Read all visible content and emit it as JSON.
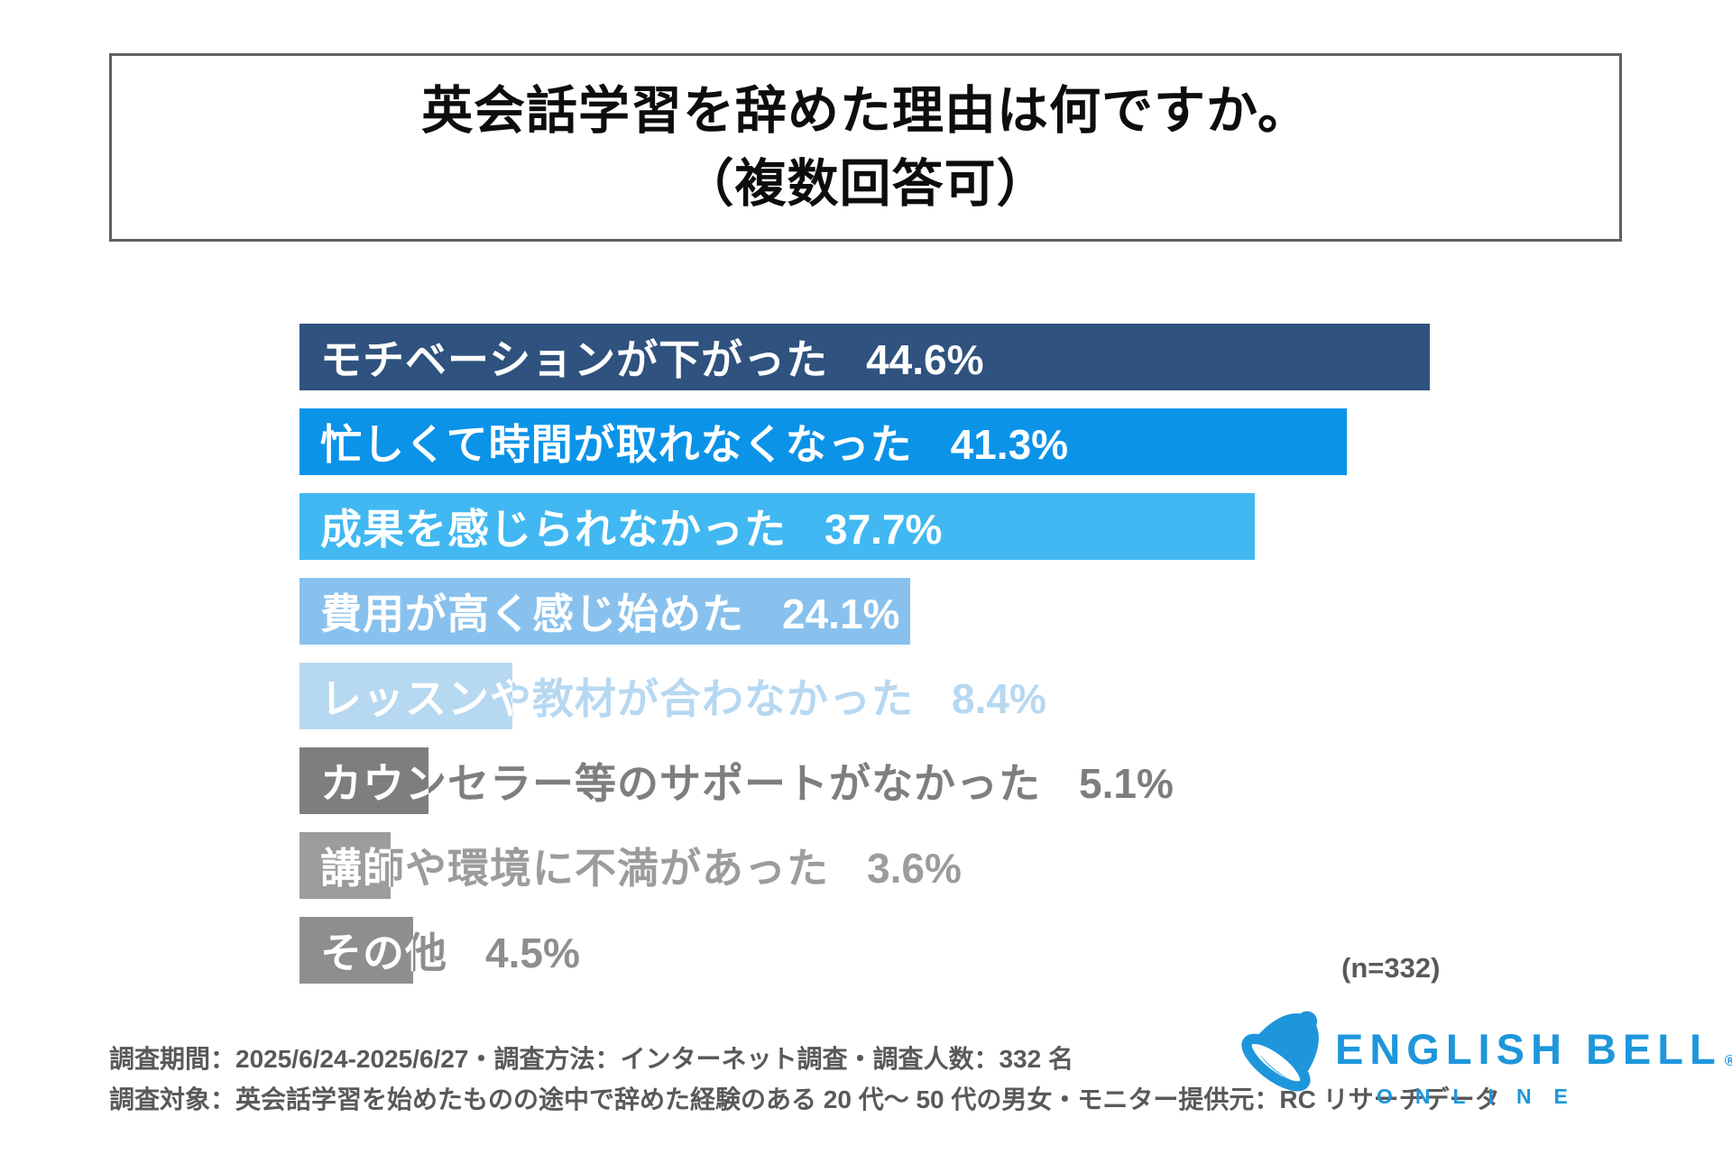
{
  "title": {
    "line1": "英会話学習を辞めた理由は何ですか。",
    "line2": "（複数回答可）"
  },
  "chart_data": {
    "type": "bar",
    "orientation": "horizontal",
    "title": "英会話学習を辞めた理由は何ですか。（複数回答可）",
    "unit": "%",
    "categories": [
      "モチベーションが下がった",
      "忙しくて時間が取れなくなった",
      "成果を感じられなかった",
      "費用が高く感じ始めた",
      "レッスンや教材が合わなかった",
      "カウンセラー等のサポートがなかった",
      "講師や環境に不満があった",
      "その他"
    ],
    "values": [
      44.6,
      41.3,
      37.7,
      24.1,
      8.4,
      5.1,
      3.6,
      4.5
    ],
    "value_labels": [
      "44.6%",
      "41.3%",
      "37.7%",
      "24.1%",
      "8.4%",
      "5.1%",
      "3.6%",
      "4.5%"
    ],
    "bar_colors": [
      "#2F527E",
      "#0B93E8",
      "#41B8F1",
      "#88C1ED",
      "#B7D8F1",
      "#7E7E7E",
      "#9C9C9C",
      "#8E8E8E"
    ],
    "xlim": [
      0,
      44.6
    ],
    "grid": false,
    "legend": false,
    "sample_note": "(n=332)"
  },
  "footer": {
    "line1": "調査期間：2025/6/24-2025/6/27・調査方法：インターネット調査・調査人数：332 名",
    "line2": "調査対象：英会話学習を始めたものの途中で辞めた経験のある 20 代〜 50 代の男女・モニター提供元：RC リサーチデータ"
  },
  "logo": {
    "brand": "ENGLISH BELL",
    "registered": "®",
    "sub": "ONLINE",
    "color": "#1E96DB"
  }
}
